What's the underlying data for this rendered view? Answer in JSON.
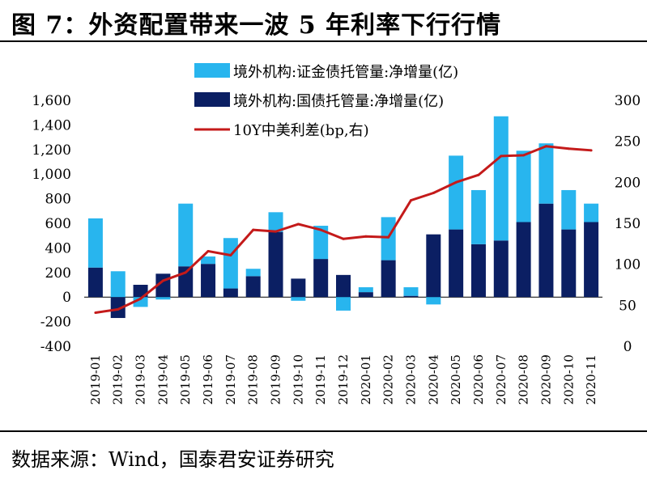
{
  "header": {
    "title": "图 7：外资配置带来一波 5 年利率下行行情"
  },
  "footer": {
    "source": "数据来源：Wind，国泰君安证券研究"
  },
  "colors": {
    "series_sec_custody": "#28b5ee",
    "series_treasury": "#0b1f63",
    "series_spread": "#c41a1a"
  },
  "chart_data": {
    "type": "bar",
    "title": "",
    "xlabel": "",
    "ylabel": "",
    "grid": false,
    "legend_position": "top-center",
    "stacked": true,
    "categories": [
      "2019-01",
      "2019-02",
      "2019-03",
      "2019-04",
      "2019-05",
      "2019-06",
      "2019-07",
      "2019-08",
      "2019-09",
      "2019-10",
      "2019-11",
      "2019-12",
      "2020-01",
      "2020-02",
      "2020-03",
      "2020-04",
      "2020-05",
      "2020-06",
      "2020-07",
      "2020-08",
      "2020-09",
      "2020-10",
      "2020-11"
    ],
    "ylim": [
      -400,
      1600
    ],
    "yticks": [
      -400,
      -200,
      0,
      200,
      400,
      600,
      800,
      1000,
      1200,
      1400,
      1600
    ],
    "ytick_labels": [
      "-400",
      "-200",
      "0",
      "200",
      "400",
      "600",
      "800",
      "1,000",
      "1,200",
      "1,400",
      "1,600"
    ],
    "y2lim": [
      0,
      300
    ],
    "y2ticks": [
      0,
      50,
      100,
      150,
      200,
      250,
      300
    ],
    "y2tick_labels": [
      "0",
      "50",
      "100",
      "150",
      "200",
      "250",
      "300"
    ],
    "series": [
      {
        "name": "境外机构:国债托管量:净增量(亿)",
        "type": "bar",
        "axis": "left",
        "values": [
          240,
          -170,
          100,
          190,
          250,
          270,
          70,
          170,
          530,
          150,
          310,
          180,
          40,
          300,
          10,
          510,
          550,
          430,
          460,
          610,
          760,
          550,
          610
        ]
      },
      {
        "name": "境外机构:证金债托管量:净增量(亿)",
        "type": "bar",
        "axis": "left",
        "values": [
          400,
          210,
          -80,
          -20,
          510,
          60,
          410,
          60,
          160,
          -30,
          270,
          -110,
          40,
          350,
          70,
          -60,
          600,
          440,
          1010,
          580,
          490,
          320,
          150
        ]
      },
      {
        "name": "10Y中美利差(bp,右)",
        "type": "line",
        "axis": "right",
        "values": [
          41,
          45,
          58,
          80,
          90,
          116,
          111,
          142,
          140,
          149,
          142,
          131,
          134,
          133,
          178,
          187,
          200,
          209,
          232,
          233,
          244,
          241,
          239
        ]
      }
    ]
  }
}
